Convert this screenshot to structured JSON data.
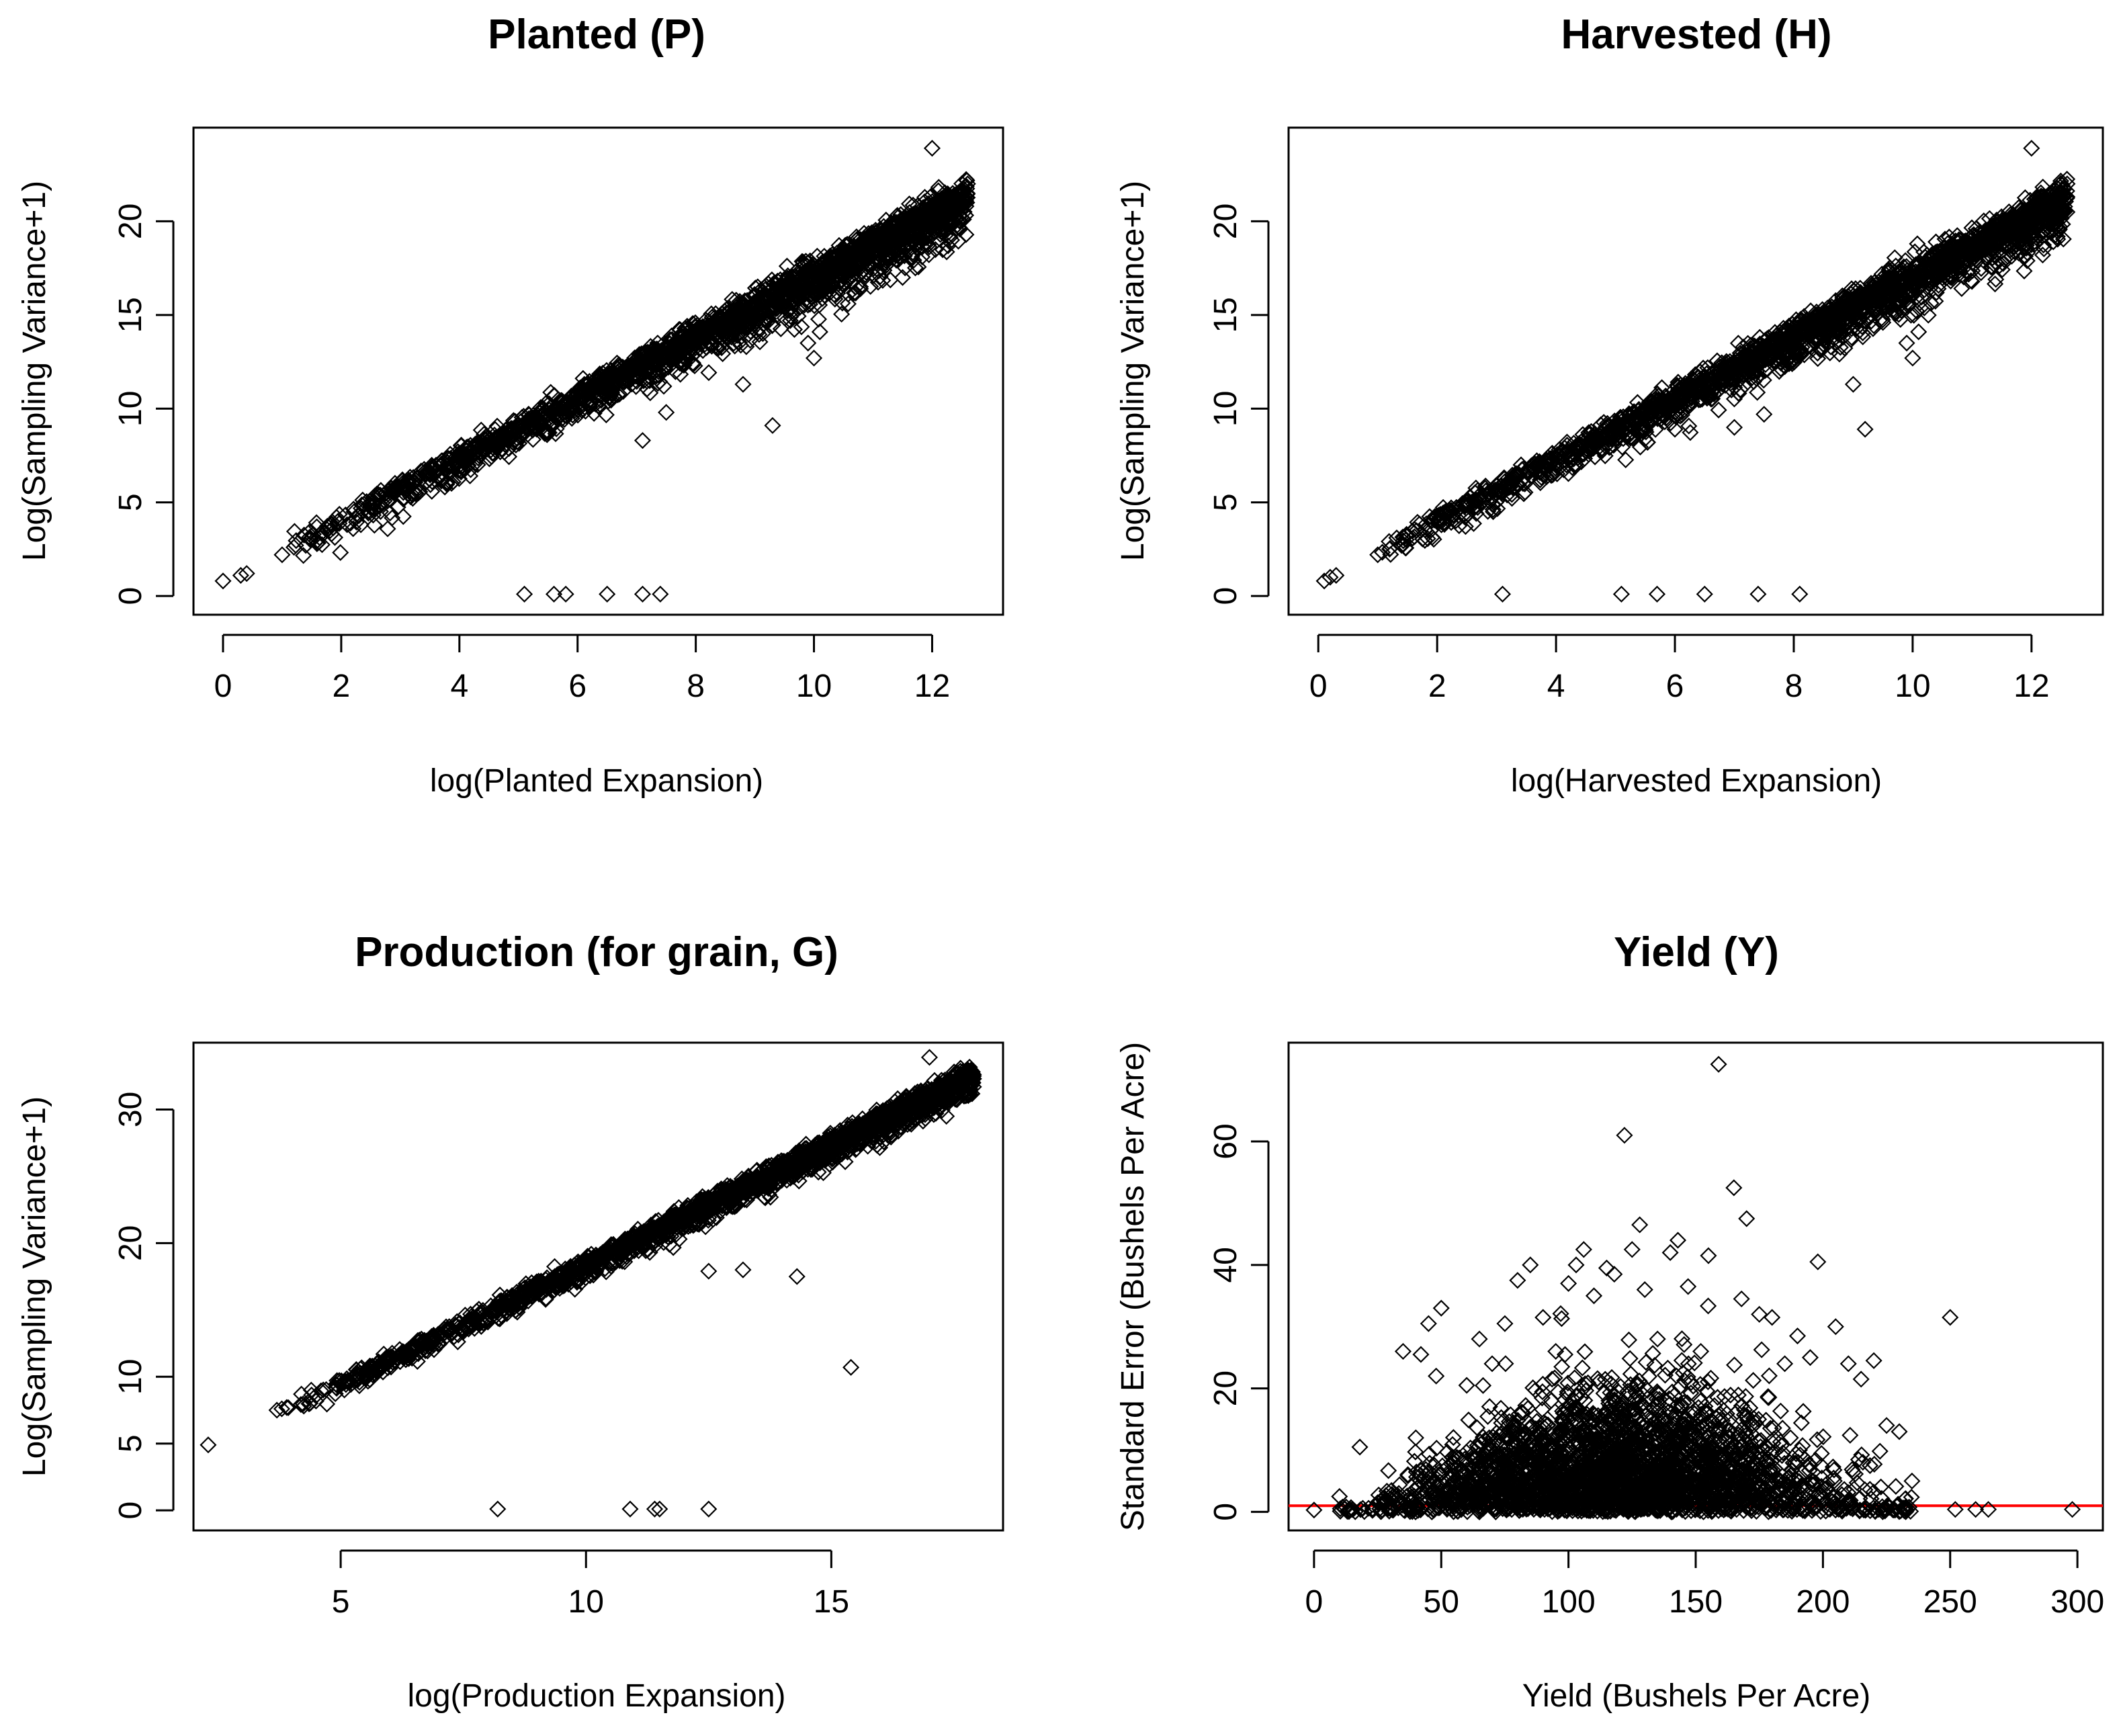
{
  "chart_data": [
    {
      "id": "planted",
      "type": "scatter",
      "title": "Planted (P)",
      "xlabel": "log(Planted Expansion)",
      "ylabel": "Log(Sampling Variance+1)",
      "xlim": [
        -0.5,
        13.2
      ],
      "ylim": [
        -1.0,
        25.0
      ],
      "xticks": [
        0,
        2,
        4,
        6,
        8,
        10,
        12
      ],
      "yticks": [
        0,
        5,
        10,
        15,
        20
      ],
      "trend": {
        "x0": 1.0,
        "x1": 12.6,
        "slope": 1.62,
        "intercept": 0.8,
        "spread": 0.75
      },
      "points": [
        [
          0.0,
          0.8
        ],
        [
          0.3,
          1.1
        ],
        [
          0.4,
          1.2
        ],
        [
          1.0,
          2.2
        ],
        [
          1.2,
          2.6
        ],
        [
          1.4,
          2.7
        ],
        [
          5.1,
          0.1
        ],
        [
          5.6,
          0.1
        ],
        [
          5.8,
          0.1
        ],
        [
          6.5,
          0.1
        ],
        [
          7.1,
          0.1
        ],
        [
          7.4,
          0.1
        ],
        [
          7.1,
          8.3
        ],
        [
          7.5,
          9.8
        ],
        [
          8.8,
          11.3
        ],
        [
          9.3,
          9.1
        ],
        [
          9.9,
          13.5
        ],
        [
          10.0,
          12.7
        ],
        [
          10.1,
          14.1
        ],
        [
          11.5,
          17.0
        ],
        [
          12.0,
          23.9
        ],
        [
          11.0,
          18.2
        ],
        [
          12.6,
          22.0
        ],
        [
          8.3,
          14.5
        ],
        [
          9.6,
          14.7
        ]
      ]
    },
    {
      "id": "harvested",
      "type": "scatter",
      "title": "Harvested (H)",
      "xlabel": "log(Harvested Expansion)",
      "ylabel": "Log(Sampling Variance+1)",
      "xlim": [
        -0.5,
        13.2
      ],
      "ylim": [
        -1.0,
        25.0
      ],
      "xticks": [
        0,
        2,
        4,
        6,
        8,
        10,
        12
      ],
      "yticks": [
        0,
        5,
        10,
        15,
        20
      ],
      "trend": {
        "x0": 1.0,
        "x1": 12.6,
        "slope": 1.62,
        "intercept": 0.8,
        "spread": 0.75
      },
      "points": [
        [
          0.1,
          0.8
        ],
        [
          0.2,
          1.0
        ],
        [
          0.3,
          1.1
        ],
        [
          1.0,
          2.2
        ],
        [
          1.2,
          2.5
        ],
        [
          1.4,
          2.7
        ],
        [
          3.1,
          0.1
        ],
        [
          5.1,
          0.1
        ],
        [
          5.7,
          0.1
        ],
        [
          6.5,
          0.1
        ],
        [
          7.4,
          0.1
        ],
        [
          8.1,
          0.1
        ],
        [
          6.0,
          8.9
        ],
        [
          7.0,
          9.0
        ],
        [
          7.5,
          9.7
        ],
        [
          9.0,
          11.3
        ],
        [
          9.2,
          8.9
        ],
        [
          9.9,
          13.5
        ],
        [
          10.0,
          12.7
        ],
        [
          10.1,
          14.1
        ],
        [
          11.4,
          16.9
        ],
        [
          12.0,
          23.9
        ],
        [
          12.6,
          22.0
        ],
        [
          8.4,
          14.4
        ],
        [
          9.5,
          14.6
        ]
      ]
    },
    {
      "id": "production",
      "type": "scatter",
      "title": "Production (for grain, G)",
      "xlabel": "log(Production Expansion)",
      "ylabel": "Log(Sampling Variance+1)",
      "xlim": [
        2.0,
        18.5
      ],
      "ylim": [
        -1.5,
        35.0
      ],
      "xticks": [
        5,
        10,
        15
      ],
      "yticks": [
        0,
        5,
        10,
        20,
        30
      ],
      "trend": {
        "x0": 3.8,
        "x1": 17.9,
        "slope": 1.79,
        "intercept": 0.5,
        "spread": 0.6
      },
      "points": [
        [
          2.3,
          4.9
        ],
        [
          3.7,
          7.5
        ],
        [
          3.8,
          7.6
        ],
        [
          3.9,
          7.7
        ],
        [
          4.2,
          8.7
        ],
        [
          4.4,
          9.0
        ],
        [
          8.2,
          0.1
        ],
        [
          10.9,
          0.1
        ],
        [
          11.4,
          0.1
        ],
        [
          11.5,
          0.1
        ],
        [
          12.5,
          0.1
        ],
        [
          11.7,
          19.9
        ],
        [
          11.9,
          20.3
        ],
        [
          12.5,
          17.9
        ],
        [
          13.2,
          18.0
        ],
        [
          14.3,
          17.5
        ],
        [
          15.4,
          10.7
        ],
        [
          17.0,
          33.9
        ],
        [
          17.9,
          32.3
        ]
      ]
    },
    {
      "id": "yield",
      "type": "scatter",
      "title": "Yield (Y)",
      "xlabel": "Yield (Bushels Per Acre)",
      "ylabel": "Standard Error (Bushels Per Acre)",
      "xlim": [
        -10,
        310
      ],
      "ylim": [
        -3,
        76
      ],
      "xticks": [
        0,
        50,
        100,
        150,
        200,
        250,
        300
      ],
      "yticks": [
        0,
        20,
        40,
        60
      ],
      "hline": {
        "y": 1.0,
        "color": "#ff0000"
      },
      "points": [
        [
          0,
          0.3
        ],
        [
          10,
          2.5
        ],
        [
          15,
          0.4
        ],
        [
          18,
          10.5
        ],
        [
          25,
          1.5
        ],
        [
          30,
          0.5
        ],
        [
          35,
          26.0
        ],
        [
          40,
          12.0
        ],
        [
          42,
          25.5
        ],
        [
          45,
          30.5
        ],
        [
          48,
          22.0
        ],
        [
          50,
          33.0
        ],
        [
          55,
          8.0
        ],
        [
          60,
          20.5
        ],
        [
          65,
          28.0
        ],
        [
          70,
          24.0
        ],
        [
          75,
          30.5
        ],
        [
          80,
          37.5
        ],
        [
          85,
          40.0
        ],
        [
          90,
          31.5
        ],
        [
          95,
          26.0
        ],
        [
          100,
          37.0
        ],
        [
          103,
          40.0
        ],
        [
          106,
          42.5
        ],
        [
          110,
          35.0
        ],
        [
          115,
          39.5
        ],
        [
          118,
          38.5
        ],
        [
          122,
          61.0
        ],
        [
          125,
          42.5
        ],
        [
          128,
          46.5
        ],
        [
          130,
          36.0
        ],
        [
          135,
          28.0
        ],
        [
          140,
          42.0
        ],
        [
          143,
          44.0
        ],
        [
          147,
          36.5
        ],
        [
          152,
          26.0
        ],
        [
          155,
          41.5
        ],
        [
          159,
          72.5
        ],
        [
          165,
          52.5
        ],
        [
          168,
          34.5
        ],
        [
          170,
          47.5
        ],
        [
          175,
          32.0
        ],
        [
          180,
          31.5
        ],
        [
          185,
          24.0
        ],
        [
          190,
          28.5
        ],
        [
          195,
          25.0
        ],
        [
          198,
          40.5
        ],
        [
          205,
          30.0
        ],
        [
          210,
          24.0
        ],
        [
          215,
          21.5
        ],
        [
          220,
          24.5
        ],
        [
          225,
          14.0
        ],
        [
          230,
          13.0
        ],
        [
          235,
          5.0
        ],
        [
          250,
          31.5
        ],
        [
          252,
          0.4
        ],
        [
          260,
          0.4
        ],
        [
          265,
          0.4
        ],
        [
          298,
          0.4
        ]
      ]
    }
  ]
}
